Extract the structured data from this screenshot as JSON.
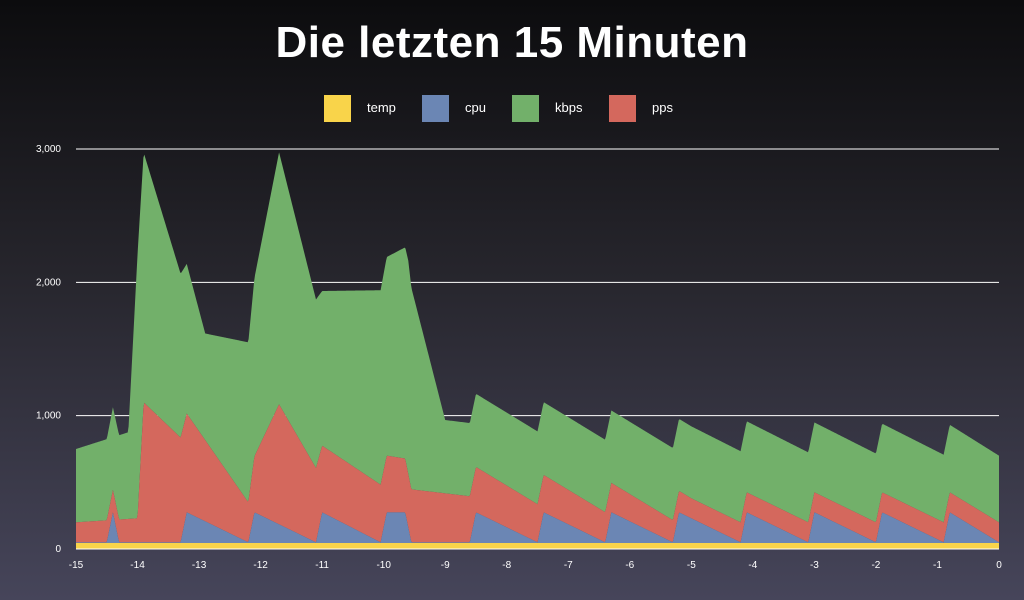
{
  "chart_data": {
    "type": "area",
    "title": "Die letzten 15 Minuten",
    "xlabel": "",
    "ylabel": "",
    "xlim": [
      -15,
      0
    ],
    "ylim": [
      0,
      3000
    ],
    "x_ticks": [
      "-15",
      "-14",
      "-13",
      "-12",
      "-11",
      "-10",
      "-9",
      "-8",
      "-7",
      "-6",
      "-5",
      "-4",
      "-3",
      "-2",
      "-1",
      "0"
    ],
    "y_ticks": [
      "0",
      "1,000",
      "2,000",
      "3,000"
    ],
    "grid": true,
    "legend_position": "top-center",
    "series": [
      {
        "name": "temp",
        "color": "#f9d44a",
        "stacked": true,
        "x": [
          -15,
          -10,
          -5,
          0
        ],
        "values": [
          45,
          45,
          45,
          45
        ]
      },
      {
        "name": "cpu",
        "color": "#6b86b4",
        "stacked": true,
        "x": [
          -15,
          -14.5,
          -14.4,
          -14.3,
          -13.3,
          -13.2,
          -12.2,
          -12.1,
          -11.1,
          -11.0,
          -10.05,
          -9.95,
          -9.65,
          -9.55,
          -8.6,
          -8.5,
          -7.5,
          -7.4,
          -6.4,
          -6.3,
          -5.3,
          -5.2,
          -4.2,
          -4.1,
          -3.1,
          -3.0,
          -2.0,
          -1.9,
          -0.9,
          -0.8,
          0
        ],
        "values": [
          5,
          5,
          230,
          5,
          5,
          230,
          5,
          230,
          5,
          230,
          5,
          230,
          230,
          5,
          5,
          230,
          5,
          230,
          5,
          230,
          5,
          230,
          5,
          230,
          5,
          230,
          5,
          230,
          5,
          230,
          5
        ]
      },
      {
        "name": "pps",
        "color": "#d4685d",
        "stacked": true,
        "x": [
          -15,
          -14,
          -13.9,
          -12.2,
          -11.7,
          -11.0,
          -9.6,
          -5,
          0
        ],
        "values": [
          150,
          180,
          1050,
          300,
          900,
          500,
          400,
          150,
          150
        ]
      },
      {
        "name": "kbps",
        "color": "#72b06a",
        "stacked": true,
        "x": [
          -15,
          -14.15,
          -14.0,
          -12.9,
          -12.2,
          -11.7,
          -11.0,
          -9.6,
          -9.0,
          -5,
          0
        ],
        "values": [
          550,
          650,
          1980,
          800,
          1200,
          1890,
          1160,
          1600,
          550,
          540,
          500
        ]
      }
    ]
  }
}
